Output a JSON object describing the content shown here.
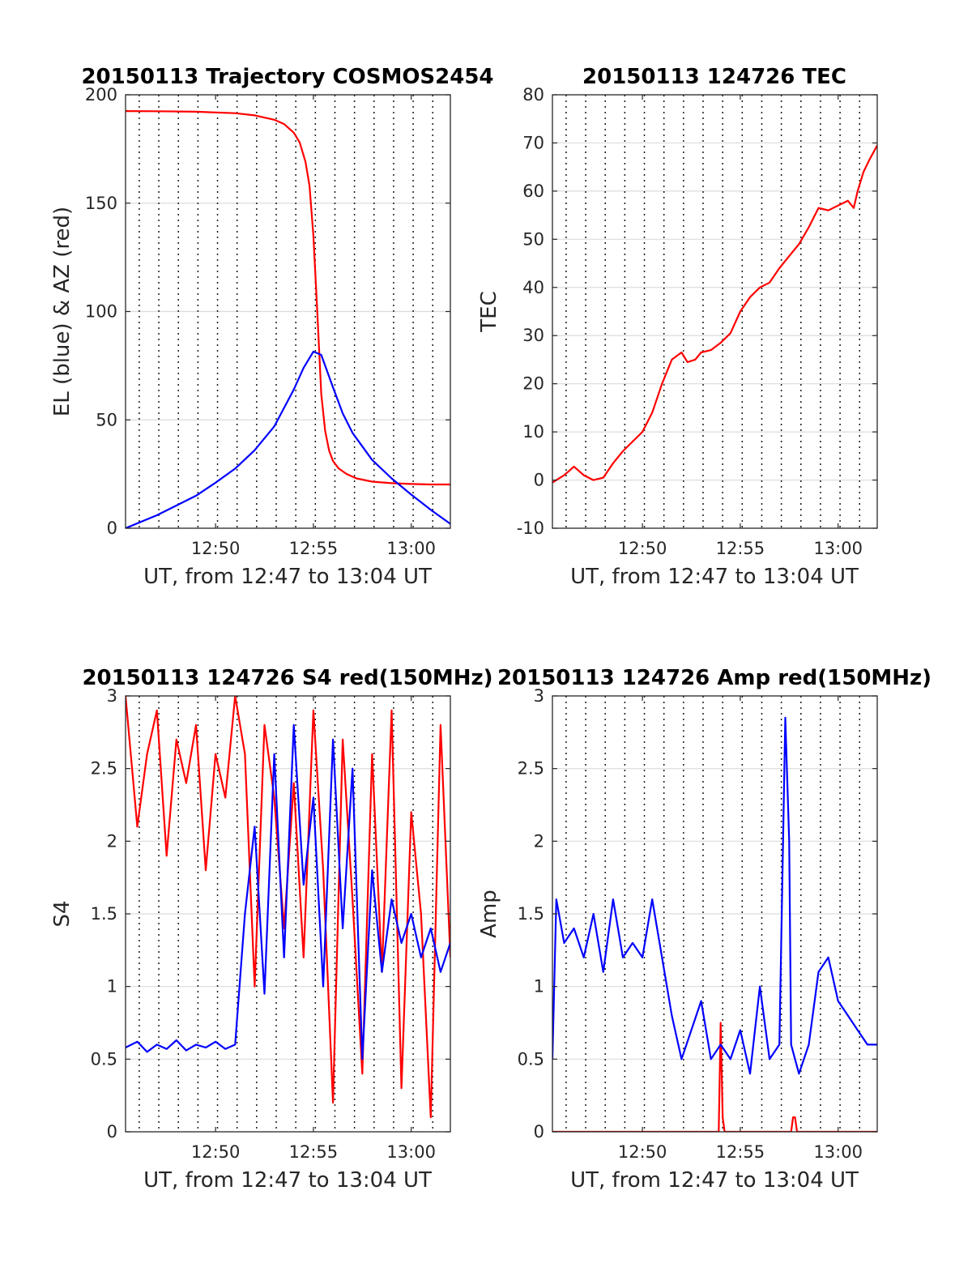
{
  "chart_data": [
    {
      "type": "line",
      "title": "20150113 Trajectory COSMOS2454",
      "xlabel": "UT, from 12:47 to 13:04 UT",
      "ylabel": "EL (blue) & AZ (red)",
      "xlim": [
        12.4,
        29.0
      ],
      "ylim": [
        0,
        200
      ],
      "xticks": [
        17,
        22,
        27
      ],
      "xtick_labels": [
        "12:50",
        "12:55",
        "13:00"
      ],
      "yticks": [
        0,
        50,
        100,
        150,
        200
      ],
      "ytick_labels": [
        "0",
        "50",
        "100",
        "150",
        "200"
      ],
      "grid": true,
      "minor_x": [
        13.1,
        14.1,
        15.1,
        16.1,
        17.1,
        18.1,
        19.1,
        20.1,
        21.1,
        22.1,
        23.1,
        24.1,
        25.1,
        26.1,
        27.1,
        28.1
      ],
      "series": [
        {
          "color": "#ff0000",
          "x": [
            12.4,
            14.0,
            16.0,
            18.0,
            19.0,
            20.0,
            20.5,
            21.0,
            21.3,
            21.6,
            21.8,
            22.0,
            22.2,
            22.4,
            22.6,
            22.8,
            23.0,
            23.3,
            23.7,
            24.2,
            25.0,
            26.0,
            27.0,
            28.0,
            29.0
          ],
          "y": [
            192.5,
            192.4,
            192.2,
            191.5,
            190.5,
            188.5,
            186.5,
            182.5,
            178.0,
            169.0,
            158.0,
            135.0,
            100.0,
            62.0,
            45.0,
            36.0,
            31.0,
            27.5,
            25.0,
            23.0,
            21.5,
            20.8,
            20.4,
            20.2,
            20.2
          ]
        },
        {
          "color": "#0000ff",
          "x": [
            12.4,
            14.0,
            16.0,
            17.0,
            18.0,
            19.0,
            20.0,
            21.0,
            21.5,
            22.0,
            22.4,
            23.0,
            23.5,
            24.0,
            25.0,
            26.0,
            27.0,
            28.0,
            29.0
          ],
          "y": [
            0,
            6,
            15,
            21,
            27.5,
            36,
            47,
            64,
            74,
            81.5,
            80,
            65,
            53,
            44,
            31.5,
            23,
            15.5,
            8.5,
            2
          ]
        }
      ]
    },
    {
      "type": "line",
      "title": "20150113 124726 TEC",
      "xlabel": "UT, from 12:47 to 13:04 UT",
      "ylabel": "TEC",
      "xlim": [
        12.4,
        29.0
      ],
      "ylim": [
        -10,
        80
      ],
      "xticks": [
        17,
        22,
        27
      ],
      "xtick_labels": [
        "12:50",
        "12:55",
        "13:00"
      ],
      "yticks": [
        -10,
        0,
        10,
        20,
        30,
        40,
        50,
        60,
        70,
        80
      ],
      "ytick_labels": [
        "-10",
        "0",
        "10",
        "20",
        "30",
        "40",
        "50",
        "60",
        "70",
        "80"
      ],
      "grid": true,
      "minor_x": [
        13.1,
        14.1,
        15.1,
        16.1,
        17.1,
        18.1,
        19.1,
        20.1,
        21.1,
        22.1,
        23.1,
        24.1,
        25.1,
        26.1,
        27.1,
        28.1
      ],
      "series": [
        {
          "color": "#ff0000",
          "x": [
            12.4,
            13.0,
            13.5,
            14.0,
            14.5,
            15.0,
            15.5,
            16.0,
            16.5,
            17.0,
            17.5,
            18.0,
            18.5,
            19.0,
            19.3,
            19.7,
            20.0,
            20.5,
            21.0,
            21.5,
            22.0,
            22.5,
            23.0,
            23.5,
            24.0,
            24.5,
            25.0,
            25.5,
            26.0,
            26.5,
            27.0,
            27.5,
            27.8,
            28.0,
            28.3,
            28.6,
            29.0
          ],
          "y": [
            -0.5,
            1.0,
            2.8,
            1.0,
            0,
            0.5,
            3.5,
            6.0,
            8.0,
            10.0,
            14.0,
            20.0,
            25.0,
            26.5,
            24.5,
            25.0,
            26.5,
            27.0,
            28.5,
            30.5,
            35.0,
            38.0,
            40.0,
            41.0,
            44.0,
            46.5,
            49.0,
            52.5,
            56.5,
            56.0,
            57.0,
            58.0,
            56.5,
            60.0,
            64.0,
            66.5,
            69.5
          ]
        }
      ]
    },
    {
      "type": "line",
      "title": "20150113 124726 S4 red(150MHz)",
      "xlabel": "UT, from 12:47 to 13:04 UT",
      "ylabel": "S4",
      "xlim": [
        12.4,
        29.0
      ],
      "ylim": [
        0,
        3
      ],
      "xticks": [
        17,
        22,
        27
      ],
      "xtick_labels": [
        "12:50",
        "12:55",
        "13:00"
      ],
      "yticks": [
        0,
        0.5,
        1,
        1.5,
        2,
        2.5,
        3
      ],
      "ytick_labels": [
        "0",
        "0.5",
        "1",
        "1.5",
        "2",
        "2.5",
        "3"
      ],
      "grid": true,
      "minor_x": [
        13.1,
        14.1,
        15.1,
        16.1,
        17.1,
        18.1,
        19.1,
        20.1,
        21.1,
        22.1,
        23.1,
        24.1,
        25.1,
        26.1,
        27.1,
        28.1
      ],
      "series": [
        {
          "color": "#ff0000",
          "x": [
            12.4,
            13.0,
            13.5,
            14.0,
            14.5,
            15.0,
            15.5,
            16.0,
            16.5,
            17.0,
            17.5,
            18.0,
            18.5,
            19.0,
            19.5,
            20.0,
            20.5,
            21.0,
            21.5,
            22.0,
            22.5,
            23.0,
            23.5,
            24.0,
            24.5,
            25.0,
            25.5,
            26.0,
            26.5,
            27.0,
            27.5,
            28.0,
            28.5,
            29.0
          ],
          "y": [
            3.0,
            2.1,
            2.6,
            2.9,
            1.9,
            2.7,
            2.4,
            2.8,
            1.8,
            2.6,
            2.3,
            3.0,
            2.6,
            1.0,
            2.8,
            2.3,
            1.4,
            2.4,
            1.2,
            2.9,
            1.8,
            0.2,
            2.7,
            1.6,
            0.4,
            2.6,
            1.1,
            2.9,
            0.3,
            2.2,
            1.5,
            0.1,
            2.8,
            1.2
          ]
        },
        {
          "color": "#0000ff",
          "x": [
            12.4,
            13.0,
            13.5,
            14.0,
            14.5,
            15.0,
            15.5,
            16.0,
            16.5,
            17.0,
            17.5,
            18.0,
            18.5,
            19.0,
            19.5,
            20.0,
            20.5,
            21.0,
            21.5,
            22.0,
            22.5,
            23.0,
            23.5,
            24.0,
            24.5,
            25.0,
            25.5,
            26.0,
            26.5,
            27.0,
            27.5,
            28.0,
            28.5,
            29.0
          ],
          "y": [
            0.58,
            0.62,
            0.55,
            0.6,
            0.57,
            0.63,
            0.56,
            0.6,
            0.58,
            0.62,
            0.57,
            0.6,
            1.5,
            2.1,
            0.95,
            2.6,
            1.2,
            2.8,
            1.7,
            2.3,
            1.0,
            2.7,
            1.4,
            2.5,
            0.5,
            1.8,
            1.1,
            1.6,
            1.3,
            1.5,
            1.2,
            1.4,
            1.1,
            1.3
          ]
        }
      ]
    },
    {
      "type": "line",
      "title": "20150113 124726 Amp red(150MHz)",
      "xlabel": "UT, from 12:47 to 13:04 UT",
      "ylabel": "Amp",
      "xlim": [
        12.4,
        29.0
      ],
      "ylim": [
        0,
        3
      ],
      "xticks": [
        17,
        22,
        27
      ],
      "xtick_labels": [
        "12:50",
        "12:55",
        "13:00"
      ],
      "yticks": [
        0,
        0.5,
        1,
        1.5,
        2,
        2.5,
        3
      ],
      "ytick_labels": [
        "0",
        "0.5",
        "1",
        "1.5",
        "2",
        "2.5",
        "3"
      ],
      "grid": true,
      "minor_x": [
        13.1,
        14.1,
        15.1,
        16.1,
        17.1,
        18.1,
        19.1,
        20.1,
        21.1,
        22.1,
        23.1,
        24.1,
        25.1,
        26.1,
        27.1,
        28.1
      ],
      "series": [
        {
          "color": "#ff0000",
          "x": [
            12.4,
            20.9,
            21.0,
            21.1,
            21.2,
            24.6,
            24.7,
            24.8,
            24.9,
            29.0
          ],
          "y": [
            0,
            0,
            0.75,
            0.1,
            0,
            0,
            0.1,
            0.1,
            0,
            0
          ]
        },
        {
          "color": "#0000ff",
          "x": [
            12.4,
            12.6,
            13.0,
            13.5,
            14.0,
            14.5,
            15.0,
            15.5,
            16.0,
            16.5,
            17.0,
            17.5,
            18.0,
            18.5,
            19.0,
            19.5,
            20.0,
            20.5,
            21.0,
            21.5,
            22.0,
            22.5,
            23.0,
            23.5,
            24.0,
            24.3,
            24.5,
            24.6,
            24.8,
            25.0,
            25.5,
            26.0,
            26.5,
            27.0,
            27.5,
            28.0,
            28.5,
            29.0
          ],
          "y": [
            0.5,
            1.6,
            1.3,
            1.4,
            1.2,
            1.5,
            1.1,
            1.6,
            1.2,
            1.3,
            1.2,
            1.6,
            1.2,
            0.8,
            0.5,
            0.7,
            0.9,
            0.5,
            0.6,
            0.5,
            0.7,
            0.4,
            1.0,
            0.5,
            0.6,
            2.85,
            2.0,
            0.6,
            0.5,
            0.4,
            0.6,
            1.1,
            1.2,
            0.9,
            0.8,
            0.7,
            0.6,
            0.6
          ]
        }
      ]
    }
  ]
}
